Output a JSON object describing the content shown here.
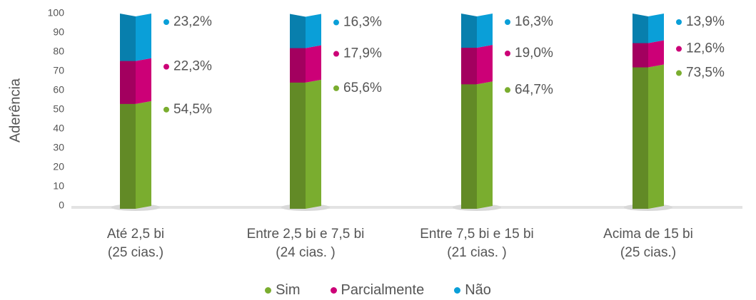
{
  "chart_data": {
    "type": "stacked-bar",
    "y_label": "Aderência",
    "categories": [
      "Até 2,5 bi\n(25 cias.)",
      "Entre 2,5 bi e 7,5 bi\n(24 cias. )",
      "Entre 7,5 bi e 15 bi\n(21 cias. )",
      "Acima de 15 bi\n(25 cias.)"
    ],
    "series": [
      {
        "name": "Sim",
        "color": "#7aad2f",
        "values": [
          54.5,
          65.6,
          64.7,
          73.5
        ],
        "value_labels": [
          "54,5%",
          "65,6%",
          "64,7%",
          "73,5%"
        ]
      },
      {
        "name": "Parcialmente",
        "color": "#cc0077",
        "values": [
          22.3,
          17.9,
          19.0,
          12.6
        ],
        "value_labels": [
          "22,3%",
          "17,9%",
          "19,0%",
          "12,6%"
        ]
      },
      {
        "name": "Não",
        "color": "#0a9fd8",
        "values": [
          23.2,
          16.3,
          16.3,
          13.9
        ],
        "value_labels": [
          "23,2%",
          "16,3%",
          "16,3%",
          "13,9%"
        ]
      }
    ],
    "ylim": [
      0,
      100
    ],
    "yticks": [
      0,
      10,
      20,
      30,
      40,
      50,
      60,
      70,
      80,
      90,
      100
    ],
    "legend": "bottom"
  }
}
